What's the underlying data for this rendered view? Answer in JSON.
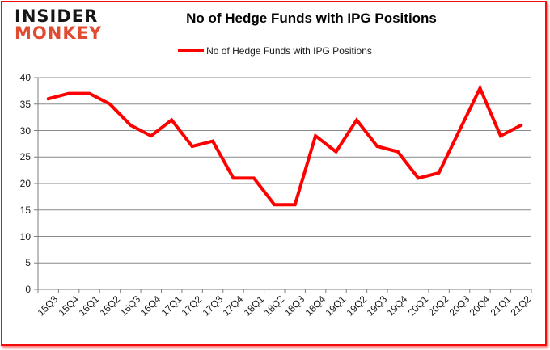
{
  "header": {
    "logo_line1": "INSIDER",
    "logo_line2": "MONKEY",
    "title": "No of Hedge Funds with IPG Positions"
  },
  "legend": {
    "label": "No of Hedge Funds with IPG Positions"
  },
  "colors": {
    "series": "#ff0000",
    "grid": "#8a8a8a",
    "axis": "#7f7f7f",
    "logo_black": "#151515",
    "logo_red": "#e14b32",
    "border": "#f40b0b"
  },
  "chart_data": {
    "type": "line",
    "title": "No of Hedge Funds with IPG Positions",
    "categories": [
      "15Q3",
      "15Q4",
      "16Q1",
      "16Q2",
      "16Q3",
      "16Q4",
      "17Q1",
      "17Q2",
      "17Q3",
      "17Q4",
      "18Q1",
      "18Q2",
      "18Q3",
      "18Q4",
      "19Q1",
      "19Q2",
      "19Q3",
      "19Q4",
      "20Q1",
      "20Q2",
      "20Q3",
      "20Q4",
      "21Q1",
      "21Q2"
    ],
    "series": [
      {
        "name": "No of Hedge Funds with IPG Positions",
        "values": [
          36,
          37,
          37,
          35,
          31,
          29,
          32,
          27,
          28,
          21,
          21,
          16,
          16,
          29,
          26,
          32,
          27,
          26,
          21,
          22,
          30,
          38,
          29,
          31
        ]
      }
    ],
    "xlabel": "",
    "ylabel": "",
    "ylim": [
      0,
      40
    ],
    "y_ticks": [
      0,
      5,
      10,
      15,
      20,
      25,
      30,
      35,
      40
    ],
    "grid": true,
    "legend_position": "top-center"
  }
}
